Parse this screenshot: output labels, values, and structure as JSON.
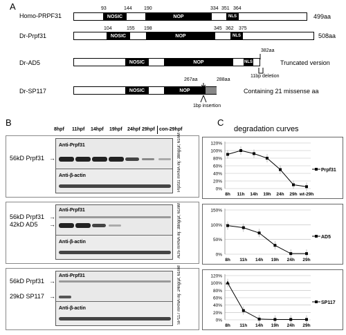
{
  "panelA": {
    "letter": "A",
    "aa_unit": "aa",
    "constructs": [
      {
        "name": "Homo-PRPF31",
        "end": "499aa",
        "numbers": [
          "93",
          "144",
          "190",
          "334",
          "351",
          "364"
        ]
      },
      {
        "name": "Dr-Prpf31",
        "end": "508aa",
        "numbers": [
          "104",
          "155",
          "198",
          "345",
          "362",
          "375"
        ]
      },
      {
        "name": "Dr-AD5",
        "numbers": [
          "382aa"
        ],
        "note": "Truncated version",
        "sub_note": "11bp deletion"
      },
      {
        "name": "Dr-SP117",
        "numbers": [
          "267aa",
          "288aa"
        ],
        "note": "Containing 21 missense aa",
        "sub_note": "1bp insertion"
      }
    ],
    "domain_labels": {
      "nosic": "NOSIC",
      "nop": "NOP",
      "nls": "NLS"
    }
  },
  "panelB": {
    "letter": "B",
    "lanes": [
      "8hpf",
      "11hpf",
      "14hpf",
      "19hpf",
      "24hpf",
      "29hpf",
      "con-29hpf"
    ],
    "blots": [
      {
        "upper_ab": "Anti-Prpf31",
        "lower_ab": "Anti-β-actin",
        "left_labels": [
          "56kD Prpf31"
        ],
        "side": "Prpf31 mRNA inj: 38ng/μl; 61nM"
      },
      {
        "upper_ab": "Anti-Prpf31",
        "lower_ab": "Anti-β-actin",
        "left_labels": [
          "56kD Prpf31",
          "42kD AD5"
        ],
        "side": "AD5 mRNA inj: 38ng/μl; 61nM"
      },
      {
        "upper_ab": "Anti-Prpf31",
        "lower_ab": "Anti-β-actin",
        "left_labels": [
          "56kD Prpf31",
          "29kD SP117"
        ],
        "side": "SP117 mRNA inj: 24ng/μl; 61nM"
      }
    ]
  },
  "panelC": {
    "letter": "C",
    "title": "degradation curves",
    "chart_data": [
      {
        "type": "line",
        "categories": [
          "8h",
          "11h",
          "14h",
          "19h",
          "24h",
          "29h",
          "wt-29h"
        ],
        "series": [
          {
            "name": "Prpf31",
            "values": [
              90,
              100,
              92,
              80,
              50,
              10,
              5
            ]
          }
        ],
        "yticks": [
          "0%",
          "20%",
          "40%",
          "60%",
          "80%",
          "100%",
          "120%"
        ],
        "ylim": [
          0,
          120
        ]
      },
      {
        "type": "line",
        "categories": [
          "8h",
          "11h",
          "14h",
          "19h",
          "24h",
          "29h"
        ],
        "series": [
          {
            "name": "AD5",
            "values": [
              97,
              90,
              72,
              30,
              2,
              2
            ]
          }
        ],
        "yticks": [
          "0%",
          "50%",
          "100%",
          "150%"
        ],
        "ylim": [
          0,
          150
        ]
      },
      {
        "type": "line",
        "categories": [
          "8h",
          "11h",
          "14h",
          "19h",
          "24h",
          "29h"
        ],
        "series": [
          {
            "name": "SP117",
            "values": [
              100,
              25,
              2,
              1,
              1,
              1
            ]
          }
        ],
        "yticks": [
          "0%",
          "20%",
          "40%",
          "60%",
          "80%",
          "100%",
          "120%"
        ],
        "ylim": [
          0,
          120
        ]
      }
    ]
  }
}
